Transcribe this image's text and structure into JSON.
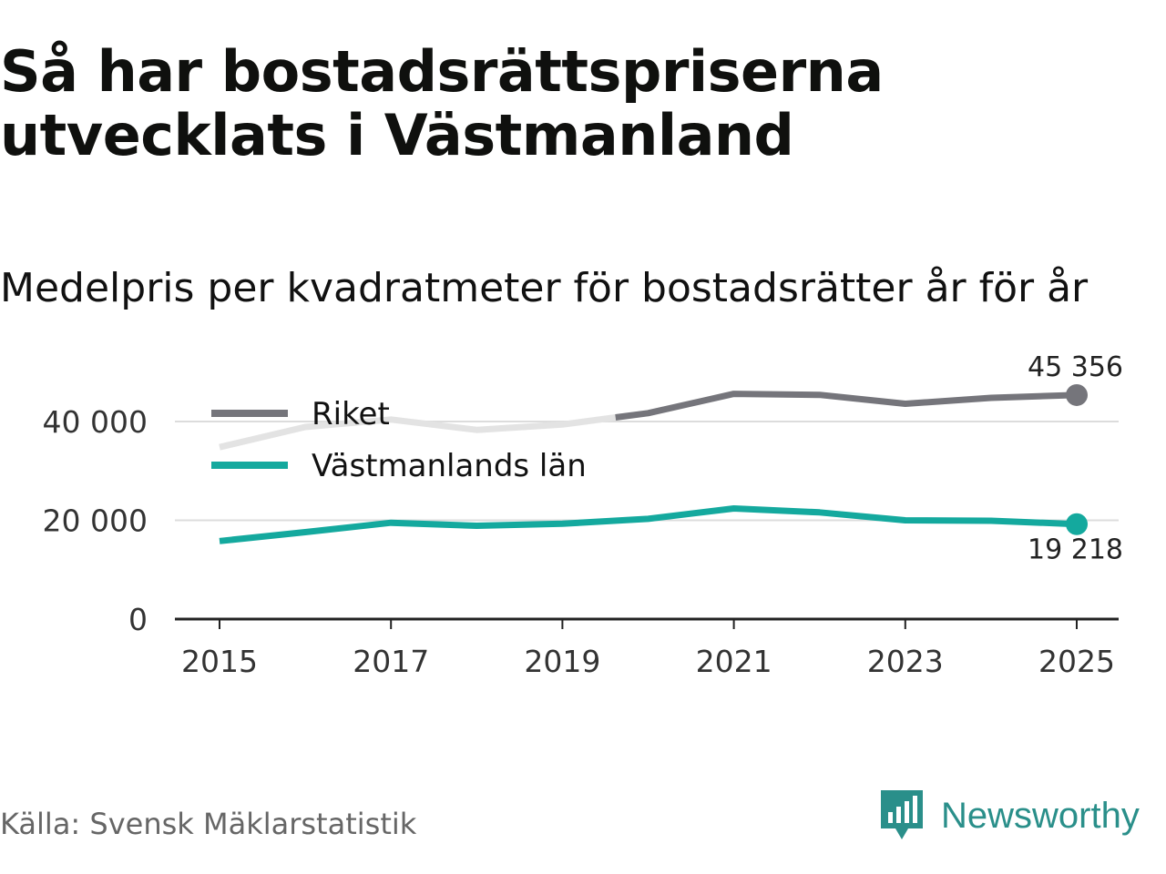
{
  "header": {
    "title": "Så har bostadsrättspriserna utvecklats i Västmanland",
    "subtitle": "Medelpris per kvadratmeter för bostadsrätter år för år"
  },
  "chart_data": {
    "type": "line",
    "title": "Så har bostadsrättspriserna utvecklats i Västmanland",
    "subtitle": "Medelpris per kvadratmeter för bostadsrätter år för år",
    "xlabel": "",
    "ylabel": "",
    "x": [
      2015,
      2016,
      2017,
      2018,
      2019,
      2020,
      2021,
      2022,
      2023,
      2024,
      2025
    ],
    "xticks": [
      "2015",
      "2017",
      "2019",
      "2021",
      "2023",
      "2025"
    ],
    "yticks": [
      "0",
      "20 000",
      "40 000"
    ],
    "ylim": [
      0,
      50000
    ],
    "grid": true,
    "legend_position": "top-left",
    "series": [
      {
        "name": "Riket",
        "color": "#75757b",
        "faded_color": "#e3e3e3",
        "values": [
          34800,
          38900,
          40400,
          38300,
          39400,
          41700,
          45600,
          45400,
          43600,
          44800,
          45356
        ],
        "end_label": "45 356"
      },
      {
        "name": "Västmanlands län",
        "color": "#14a99e",
        "values": [
          15800,
          17600,
          19500,
          18900,
          19300,
          20300,
          22400,
          21600,
          20000,
          19900,
          19218
        ],
        "end_label": "19 218"
      }
    ]
  },
  "footer": {
    "source": "Källa: Svensk Mäklarstatistik",
    "brand": "Newsworthy",
    "brand_color": "#2a8f8a"
  }
}
